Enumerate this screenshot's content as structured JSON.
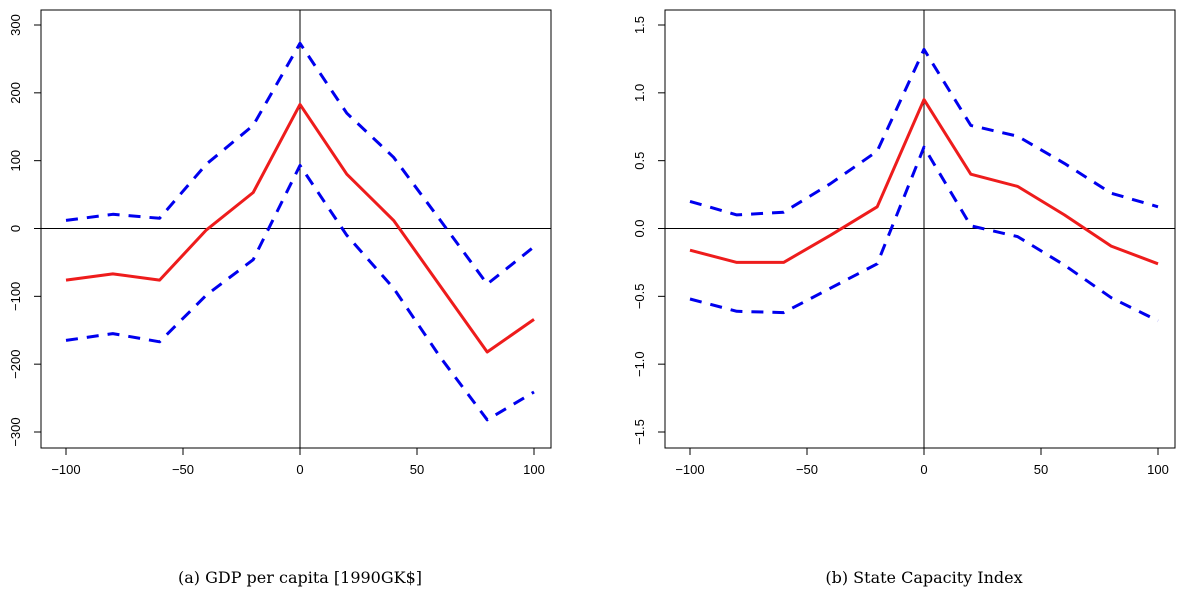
{
  "chart_data": [
    {
      "type": "line",
      "caption": "(a) GDP per capita [1990GK$]",
      "x": [
        -100,
        -80,
        -60,
        -40,
        -20,
        0,
        20,
        40,
        60,
        80,
        100
      ],
      "xticks": [
        -100,
        -50,
        0,
        50,
        100
      ],
      "xtick_labels": [
        "−100",
        "−50",
        "0",
        "50",
        "100"
      ],
      "xlim": [
        -100,
        100
      ],
      "yticks": [
        -300,
        -200,
        -100,
        0,
        100,
        200,
        300
      ],
      "ytick_labels": [
        "−300",
        "−200",
        "−100",
        "0",
        "100",
        "200",
        "300"
      ],
      "ylim": [
        -300,
        300
      ],
      "reference_lines": {
        "x": 0,
        "y": 0
      },
      "series": [
        {
          "role": "estimate",
          "color": "#ee1c1c",
          "style": "solid",
          "values": [
            -76,
            -67,
            -76,
            -2,
            53,
            183,
            80,
            12,
            -85,
            -182,
            -134
          ]
        },
        {
          "role": "upper",
          "color": "#0000ee",
          "style": "dashed",
          "values": [
            12,
            21,
            15,
            95,
            152,
            273,
            170,
            105,
            12,
            -82,
            -27
          ]
        },
        {
          "role": "lower",
          "color": "#0000ee",
          "style": "dashed",
          "values": [
            -165,
            -155,
            -167,
            -98,
            -46,
            93,
            -10,
            -88,
            -190,
            -282,
            -241
          ]
        }
      ]
    },
    {
      "type": "line",
      "caption": "(b) State Capacity Index",
      "x": [
        -100,
        -80,
        -60,
        -40,
        -20,
        0,
        20,
        40,
        60,
        80,
        100
      ],
      "xticks": [
        -100,
        -50,
        0,
        50,
        100
      ],
      "xtick_labels": [
        "−100",
        "−50",
        "0",
        "50",
        "100"
      ],
      "xlim": [
        -100,
        100
      ],
      "yticks": [
        -1.5,
        -1.0,
        -0.5,
        0.0,
        0.5,
        1.0,
        1.5
      ],
      "ytick_labels": [
        "−1.5",
        "−1.0",
        "−0.5",
        "0.0",
        "0.5",
        "1.0",
        "1.5"
      ],
      "ylim": [
        -1.5,
        1.5
      ],
      "reference_lines": {
        "x": 0,
        "y": 0
      },
      "series": [
        {
          "role": "estimate",
          "color": "#ee1c1c",
          "style": "solid",
          "values": [
            -0.16,
            -0.25,
            -0.25,
            -0.05,
            0.16,
            0.95,
            0.4,
            0.31,
            0.1,
            -0.13,
            -0.26
          ]
        },
        {
          "role": "upper",
          "color": "#0000ee",
          "style": "dashed",
          "values": [
            0.2,
            0.1,
            0.12,
            0.33,
            0.57,
            1.32,
            0.76,
            0.68,
            0.48,
            0.26,
            0.16
          ]
        },
        {
          "role": "lower",
          "color": "#0000ee",
          "style": "dashed",
          "values": [
            -0.52,
            -0.61,
            -0.62,
            -0.44,
            -0.26,
            0.6,
            0.02,
            -0.06,
            -0.27,
            -0.51,
            -0.68
          ]
        }
      ]
    }
  ]
}
